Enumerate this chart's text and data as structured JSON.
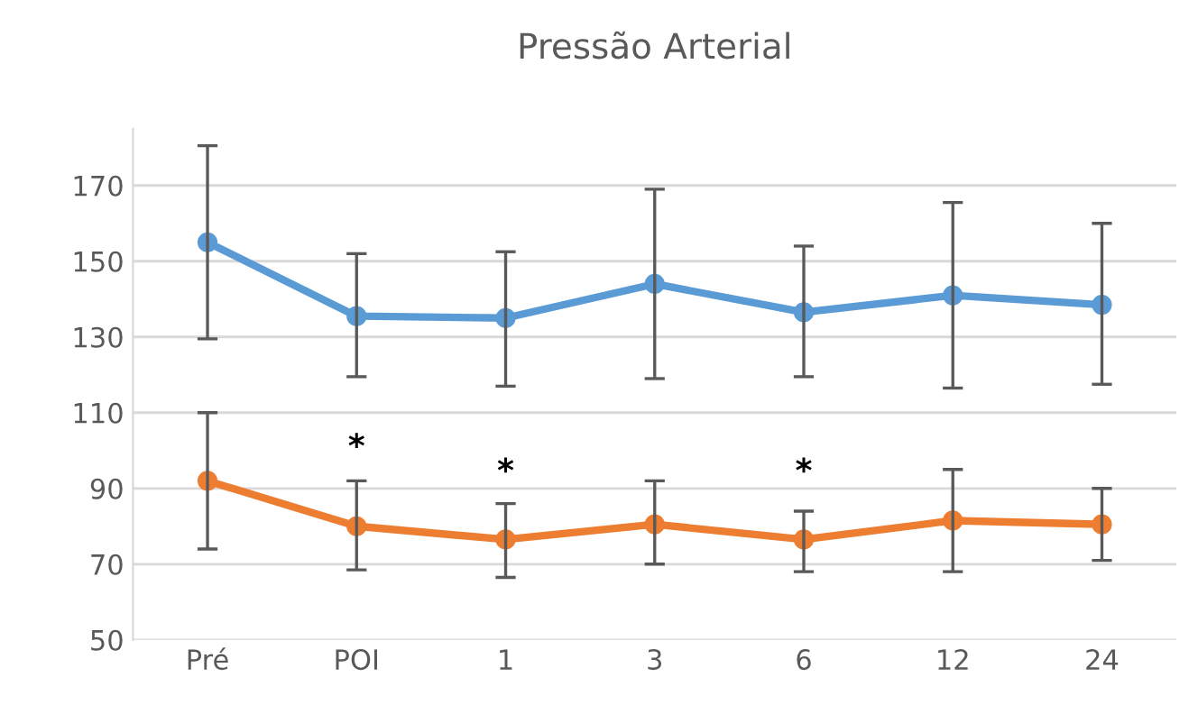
{
  "chart_data": {
    "type": "line",
    "title": "Pressão Arterial",
    "categories": [
      "Pré",
      "POI",
      "1",
      "3",
      "6",
      "12",
      "24"
    ],
    "series": [
      {
        "color": "#5b9bd5",
        "values": [
          155,
          135.5,
          135,
          144,
          136.5,
          141,
          138.5
        ],
        "errors": [
          [
            129.5,
            180.5
          ],
          [
            119.5,
            152
          ],
          [
            117,
            152.5
          ],
          [
            119,
            169
          ],
          [
            119.5,
            154
          ],
          [
            116.5,
            165.5
          ],
          [
            117.5,
            160
          ]
        ]
      },
      {
        "color": "#ed7d31",
        "values": [
          92,
          80,
          76.5,
          80.5,
          76.5,
          81.5,
          80.5
        ],
        "errors": [
          [
            74,
            110
          ],
          [
            68.5,
            92
          ],
          [
            66.5,
            86
          ],
          [
            70,
            92
          ],
          [
            68,
            84
          ],
          [
            68,
            95
          ],
          [
            71,
            90
          ]
        ]
      }
    ],
    "annotations": [
      "*",
      "*",
      "*"
    ],
    "ylim": [
      50,
      185
    ],
    "yticks": [
      50,
      70,
      90,
      110,
      130,
      150,
      170
    ],
    "grid": "y",
    "marker": "circle",
    "line_style": "solid"
  }
}
